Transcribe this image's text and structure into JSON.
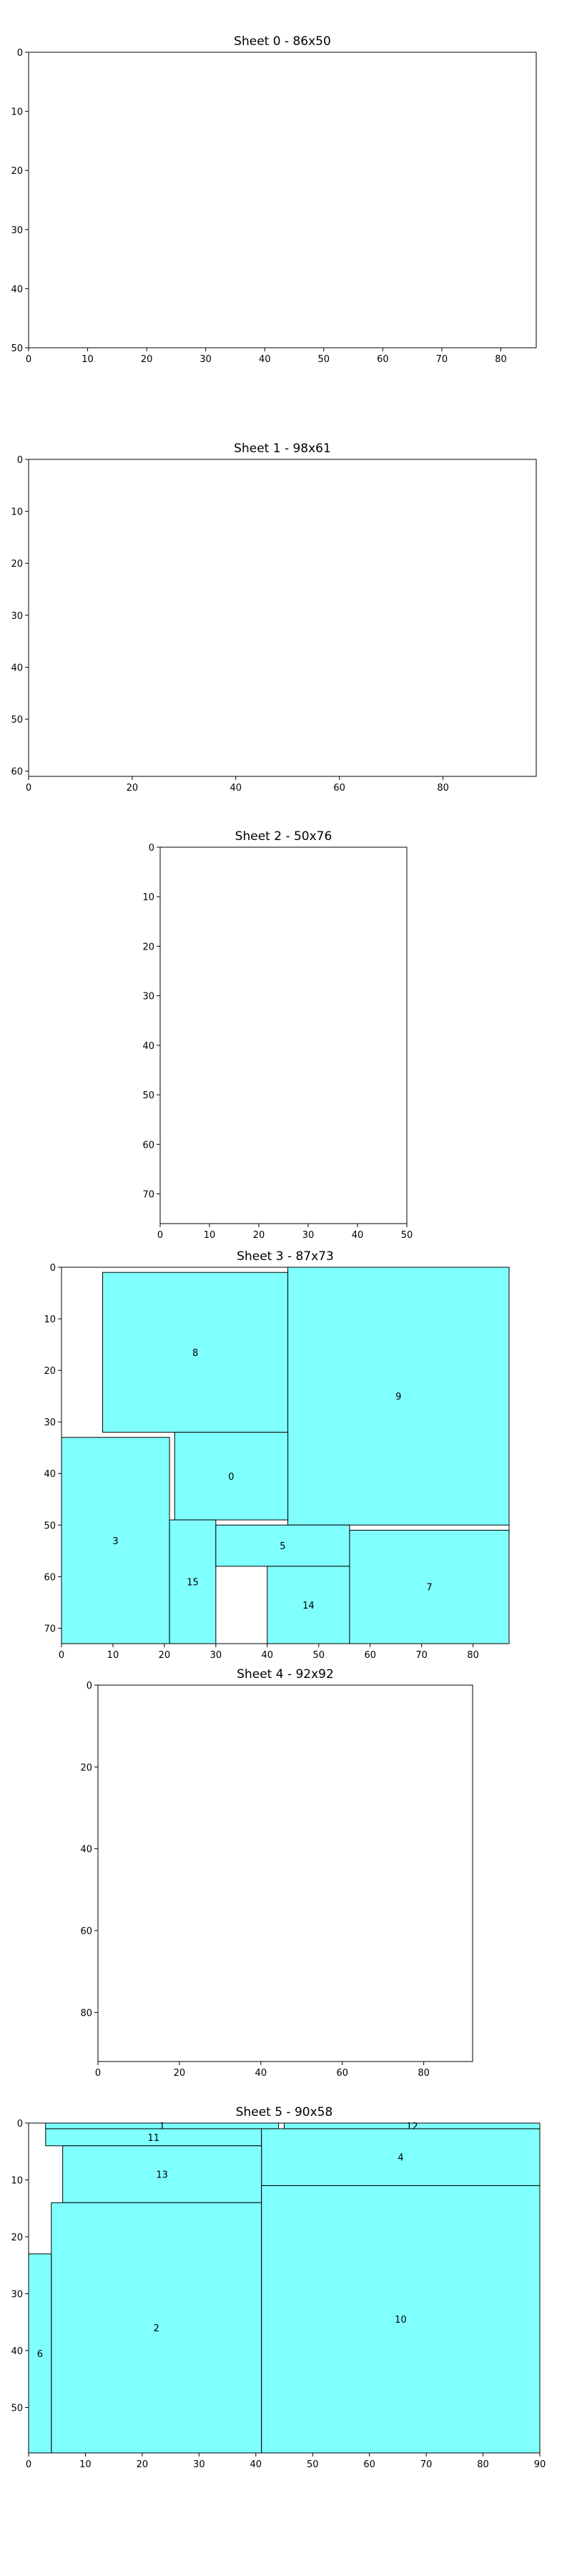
{
  "chart_data": {
    "type": "sheet-packing",
    "grid": false,
    "y_axis_inverted": true,
    "fill_color": "#80ffff",
    "edge_color": "#000000",
    "sheets": [
      {
        "id": 0,
        "title": "Sheet 0 - 86x50",
        "width": 86,
        "height": 50,
        "xticks": [
          0,
          10,
          20,
          30,
          40,
          50,
          60,
          70,
          80
        ],
        "yticks": [
          0,
          10,
          20,
          30,
          40,
          50
        ],
        "rects": []
      },
      {
        "id": 1,
        "title": "Sheet 1 - 98x61",
        "width": 98,
        "height": 61,
        "xticks": [
          0,
          20,
          40,
          60,
          80
        ],
        "yticks": [
          0,
          10,
          20,
          30,
          40,
          50,
          60
        ],
        "rects": []
      },
      {
        "id": 2,
        "title": "Sheet 2 - 50x76",
        "width": 50,
        "height": 76,
        "xticks": [
          0,
          10,
          20,
          30,
          40,
          50
        ],
        "yticks": [
          0,
          10,
          20,
          30,
          40,
          50,
          60,
          70
        ],
        "rects": []
      },
      {
        "id": 3,
        "title": "Sheet 3 - 87x73",
        "width": 87,
        "height": 73,
        "xticks": [
          0,
          10,
          20,
          30,
          40,
          50,
          60,
          70,
          80
        ],
        "yticks": [
          0,
          10,
          20,
          30,
          40,
          50,
          60,
          70
        ],
        "rects": [
          {
            "label": "8",
            "x": 8,
            "y": 1,
            "w": 36,
            "h": 31
          },
          {
            "label": "9",
            "x": 44,
            "y": 0,
            "w": 43,
            "h": 50
          },
          {
            "label": "0",
            "x": 22,
            "y": 32,
            "w": 22,
            "h": 17
          },
          {
            "label": "3",
            "x": 0,
            "y": 33,
            "w": 21,
            "h": 40
          },
          {
            "label": "15",
            "x": 21,
            "y": 49,
            "w": 9,
            "h": 24
          },
          {
            "label": "5",
            "x": 30,
            "y": 50,
            "w": 26,
            "h": 8
          },
          {
            "label": "14",
            "x": 40,
            "y": 58,
            "w": 16,
            "h": 15
          },
          {
            "label": "7",
            "x": 56,
            "y": 51,
            "w": 31,
            "h": 22
          }
        ]
      },
      {
        "id": 4,
        "title": "Sheet 4 - 92x92",
        "width": 92,
        "height": 92,
        "xticks": [
          0,
          20,
          40,
          60,
          80
        ],
        "yticks": [
          0,
          20,
          40,
          60,
          80
        ],
        "rects": []
      },
      {
        "id": 5,
        "title": "Sheet 5 - 90x58",
        "width": 90,
        "height": 58,
        "xticks": [
          0,
          10,
          20,
          30,
          40,
          50,
          60,
          70,
          80,
          90
        ],
        "yticks": [
          0,
          10,
          20,
          30,
          40,
          50
        ],
        "rects": [
          {
            "label": "1",
            "x": 3,
            "y": 0,
            "w": 41,
            "h": 1
          },
          {
            "label": "12",
            "x": 45,
            "y": 0,
            "w": 45,
            "h": 1
          },
          {
            "label": "11",
            "x": 3,
            "y": 1,
            "w": 38,
            "h": 3
          },
          {
            "label": "4",
            "x": 41,
            "y": 1,
            "w": 49,
            "h": 10
          },
          {
            "label": "13",
            "x": 6,
            "y": 4,
            "w": 35,
            "h": 10
          },
          {
            "label": "2",
            "x": 4,
            "y": 14,
            "w": 37,
            "h": 44
          },
          {
            "label": "10",
            "x": 41,
            "y": 11,
            "w": 49,
            "h": 47
          },
          {
            "label": "6",
            "x": 0,
            "y": 23,
            "w": 4,
            "h": 35
          }
        ]
      }
    ]
  }
}
